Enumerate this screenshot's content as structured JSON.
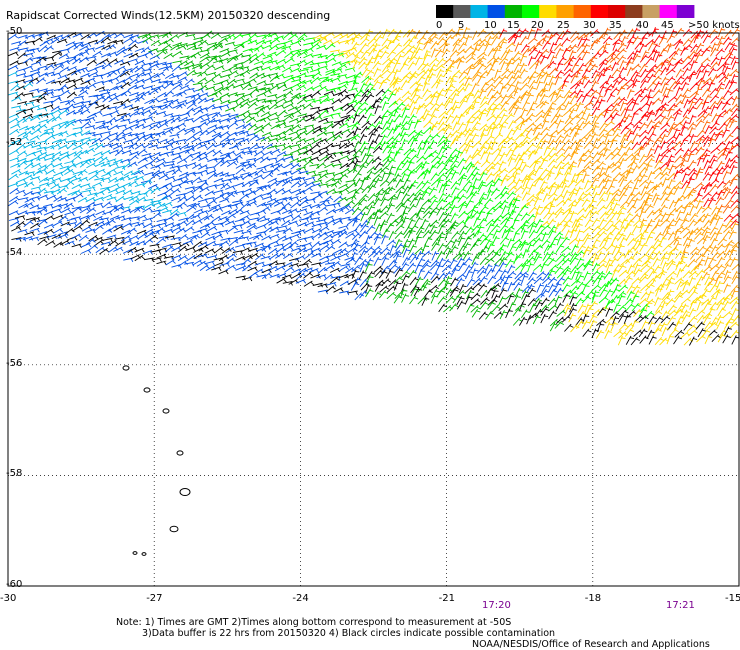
{
  "title": "Rapidscat Corrected Winds(12.5KM) 20150320 descending",
  "legend": {
    "colors": [
      "#000000",
      "#5a5a5a",
      "#00b4e6",
      "#0050e6",
      "#00b400",
      "#00ff00",
      "#ffdc00",
      "#ffa000",
      "#ff6400",
      "#ff0000",
      "#dc0000",
      "#8c3c1e",
      "#c8a064",
      "#ff00ff",
      "#7d00d2"
    ],
    "labels": [
      "0",
      "5",
      "10",
      "15",
      "20",
      "25",
      "30",
      "35",
      "40",
      "45",
      ">50 knots"
    ],
    "unit": "knots"
  },
  "axes": {
    "lon_ticks": [
      "-30",
      "-27",
      "-24",
      "-21",
      "-18",
      "-15"
    ],
    "lat_ticks": [
      "-50",
      "-52",
      "-54",
      "-56",
      "-58",
      "-60"
    ]
  },
  "time_labels": [
    "17:20",
    "17:21"
  ],
  "notes": {
    "line1": "Note: 1) Times are GMT 2)Times along bottom correspond to measurement at -50S",
    "line2": "3)Data buffer is 22 hrs from 20150320 4) Black circles indicate possible contamination",
    "credit": "NOAA/NESDIS/Office of Research and Applications"
  }
}
